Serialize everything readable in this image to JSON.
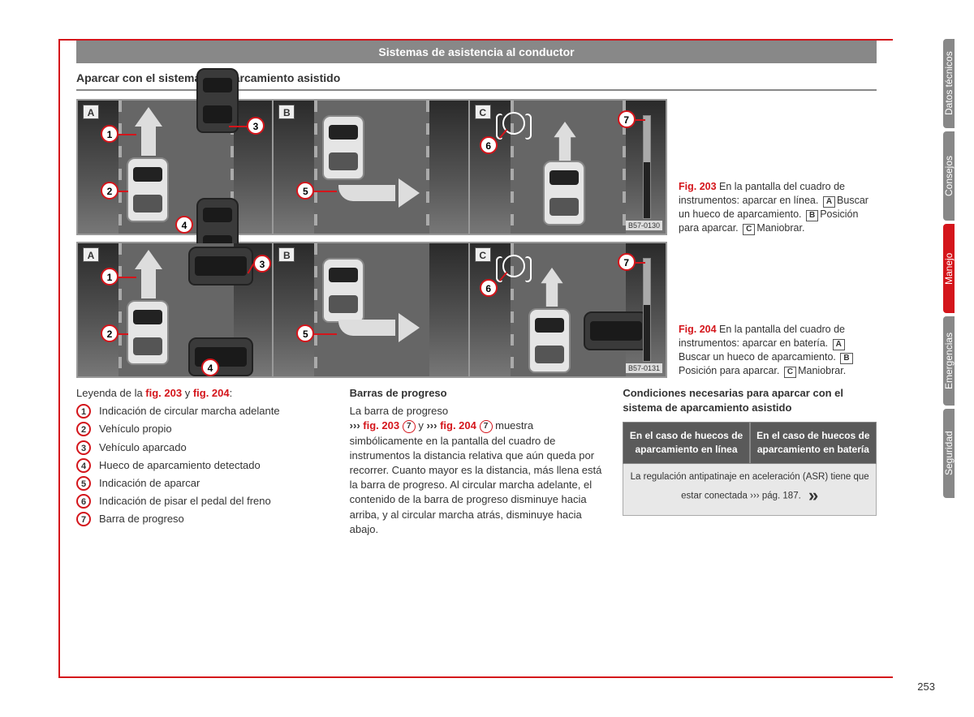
{
  "header": "Sistemas de asistencia al conductor",
  "subhead": "Aparcar con el sistema de aparcamiento asistido",
  "tabs": [
    {
      "label": "Datos técnicos",
      "active": false
    },
    {
      "label": "Consejos",
      "active": false
    },
    {
      "label": "Manejo",
      "active": true
    },
    {
      "label": "Emergencias",
      "active": false
    },
    {
      "label": "Seguridad",
      "active": false
    }
  ],
  "figures": {
    "fig203": {
      "label": "Fig. 203",
      "text": "En la pantalla del cuadro de instrumentos: aparcar en línea.",
      "steps": {
        "A": "Buscar un hueco de aparcamiento.",
        "B": "Posición para aparcar.",
        "C": "Maniobrar."
      },
      "imgnum": "B57-0130",
      "panel_labels": [
        "A",
        "B",
        "C"
      ],
      "callouts_A": [
        "1",
        "2",
        "3",
        "4"
      ],
      "callouts_B": [
        "5"
      ],
      "callouts_C": [
        "6",
        "7"
      ]
    },
    "fig204": {
      "label": "Fig. 204",
      "text": "En la pantalla del cuadro de instrumentos: aparcar en batería.",
      "steps": {
        "A": "Buscar un hueco de aparcamiento.",
        "B": "Posición para aparcar.",
        "C": "Maniobrar."
      },
      "imgnum": "B57-0131",
      "panel_labels": [
        "A",
        "B",
        "C"
      ],
      "callouts_A": [
        "1",
        "2",
        "3",
        "4"
      ],
      "callouts_B": [
        "5"
      ],
      "callouts_C": [
        "6",
        "7"
      ]
    }
  },
  "legend": {
    "intro_prefix": "Leyenda de la ",
    "ref1": "fig. 203",
    "intro_y": " y ",
    "ref2": "fig. 204",
    "items": [
      {
        "n": "1",
        "t": "Indicación de circular marcha adelante"
      },
      {
        "n": "2",
        "t": "Vehículo propio"
      },
      {
        "n": "3",
        "t": "Vehículo aparcado"
      },
      {
        "n": "4",
        "t": "Hueco de aparcamiento detectado"
      },
      {
        "n": "5",
        "t": "Indicación de aparcar"
      },
      {
        "n": "6",
        "t": "Indicación de pisar el pedal del freno"
      },
      {
        "n": "7",
        "t": "Barra de progreso"
      }
    ]
  },
  "progress": {
    "title": "Barras de progreso",
    "lead": "La barra de progreso",
    "ref1": "fig. 203",
    "c1": "7",
    "y": " y ",
    "ref2": "fig. 204",
    "c2": "7",
    "body": " muestra simbólicamente en la pantalla del cuadro de instrumentos la distancia relativa que aún queda por recorrer. Cuanto mayor es la distancia, más llena está la barra de progreso. Al circular marcha adelante, el contenido de la barra de progreso disminuye hacia arriba, y al circular marcha atrás, disminuye hacia abajo."
  },
  "conditions": {
    "title": "Condiciones necesarias para aparcar con el sistema de aparcamiento asistido",
    "head1": "En el caso de huecos de aparcamiento en línea",
    "head2": "En el caso de huecos de aparcamiento en batería",
    "row": "La regulación antipatinaje en aceleración (ASR) tiene que estar conectada ››› pág. 187."
  },
  "pagenum": "253",
  "colors": {
    "accent": "#d4151b",
    "grey": "#888",
    "darkgrey": "#5a5a5a"
  }
}
